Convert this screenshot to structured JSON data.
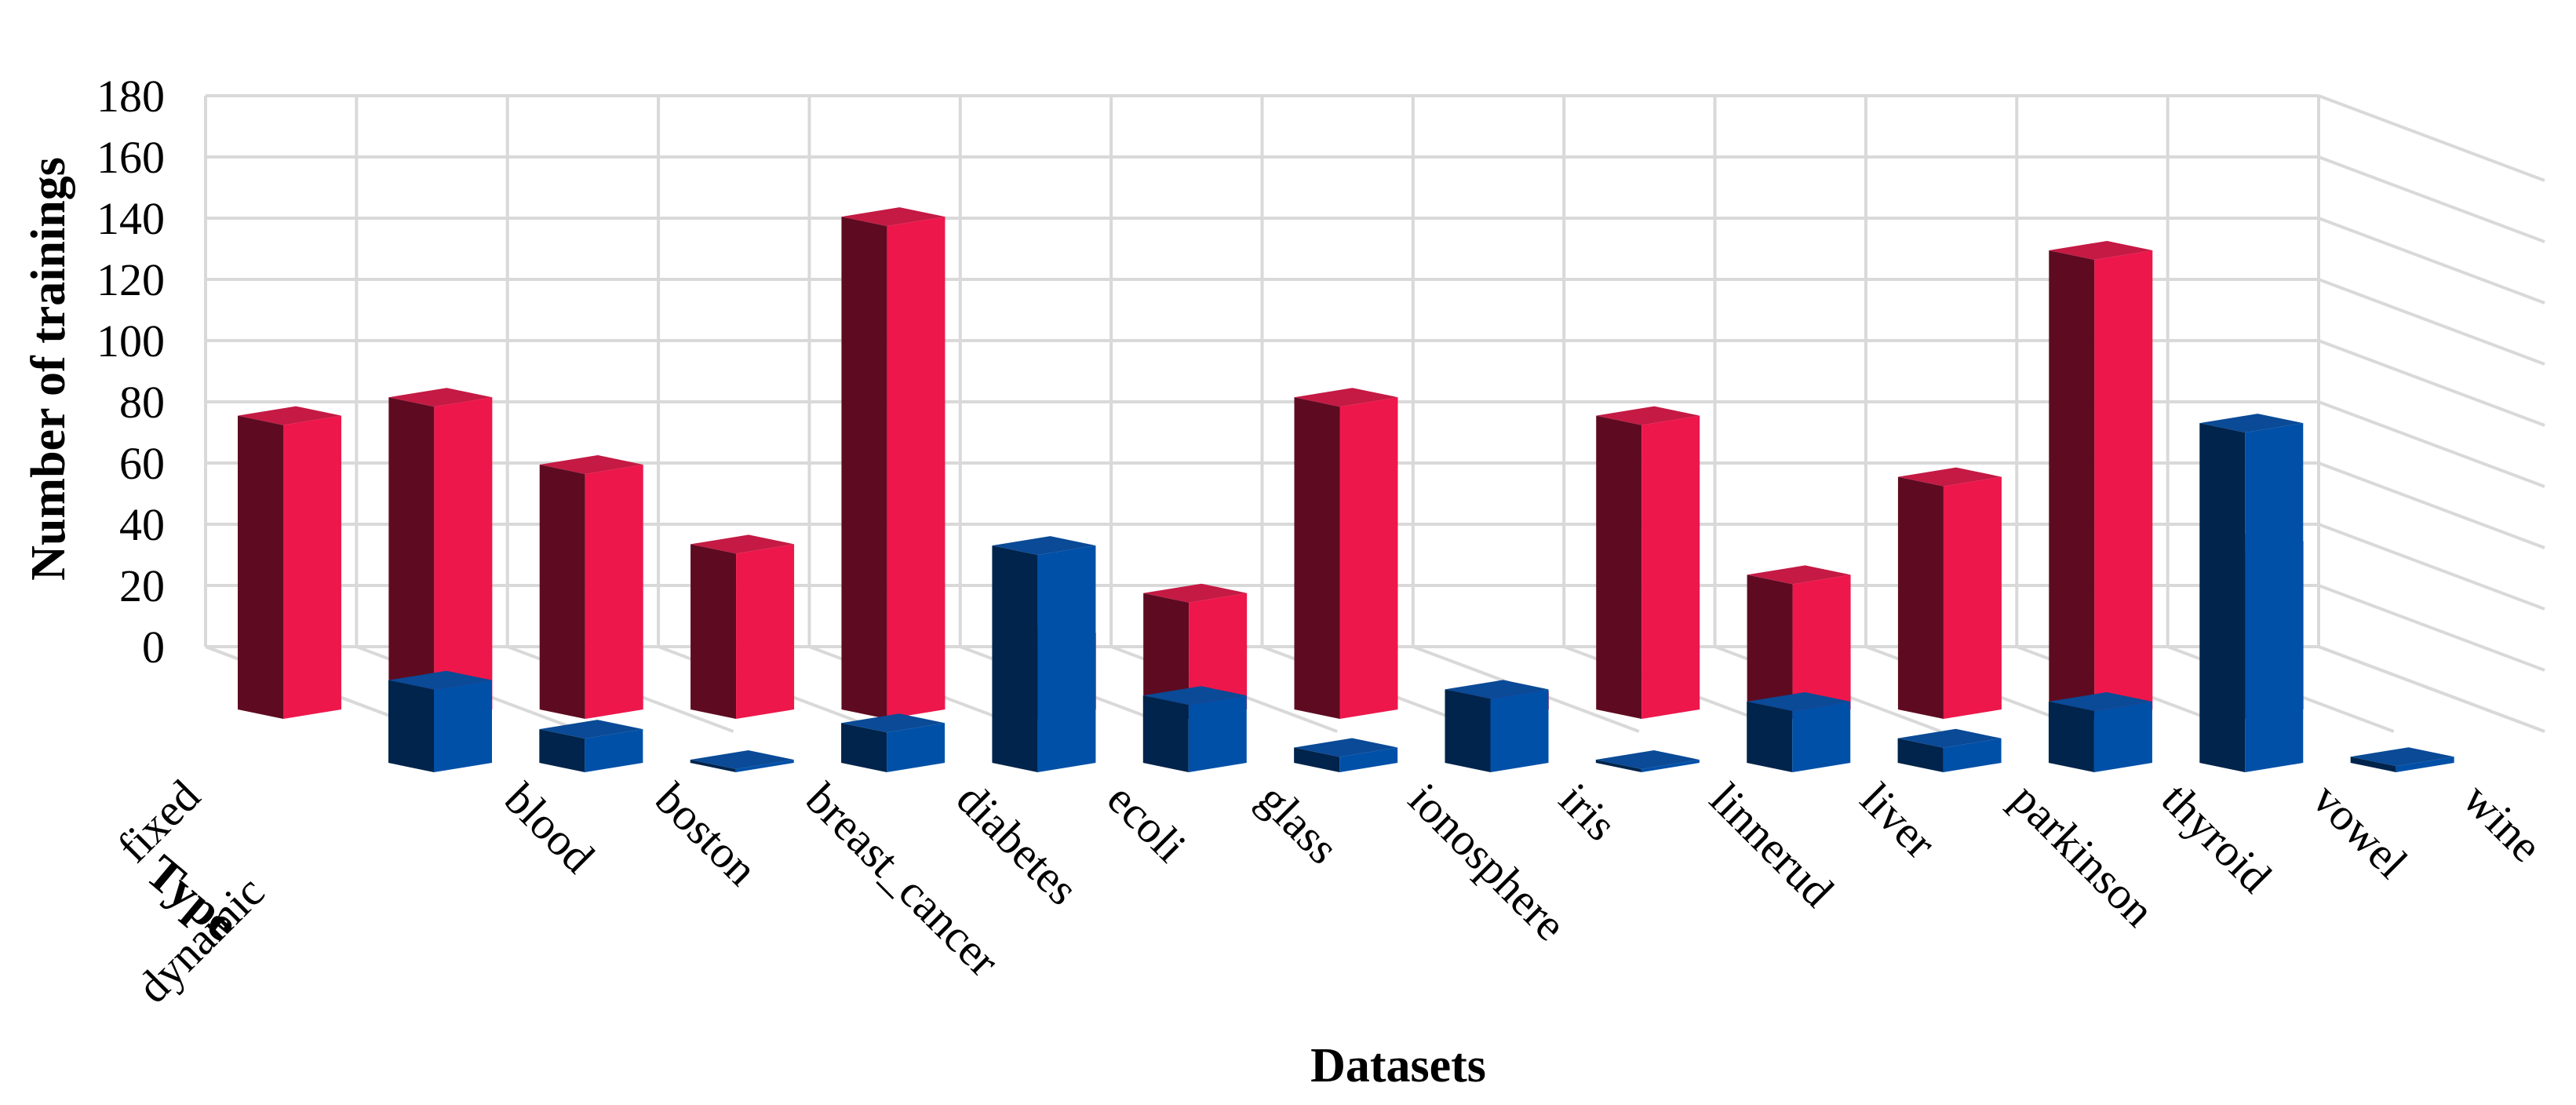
{
  "chart_data": {
    "type": "bar",
    "variant": "3d-column",
    "categories": [
      "blood",
      "boston",
      "breast_cancer",
      "diabetes",
      "ecoli",
      "glass",
      "ionosphere",
      "iris",
      "linnerud",
      "liver",
      "parkinson",
      "thyroid",
      "vowel",
      "wine"
    ],
    "series": [
      {
        "name": "fixed",
        "values": [
          96,
          102,
          80,
          54,
          161,
          25,
          38,
          102,
          6,
          96,
          44,
          76,
          150,
          55
        ]
      },
      {
        "name": "dynamic",
        "values": [
          27,
          11,
          1,
          13,
          71,
          22,
          5,
          24,
          1,
          20,
          8,
          20,
          111,
          2
        ]
      }
    ],
    "xlabel": "Datasets",
    "ylabel": "Number of trainings",
    "depth_label": "Type",
    "ylim": [
      0,
      180
    ],
    "yticks": [
      "0",
      "20",
      "40",
      "60",
      "80",
      "100",
      "120",
      "140",
      "160",
      "180"
    ],
    "grid": true,
    "legend": "none",
    "colors": {
      "fixed_front": "#ed174b",
      "fixed_top": "#c41a44",
      "fixed_side": "#5e0b21",
      "dynamic_front": "#0050a8",
      "dynamic_top": "#0a4a96",
      "dynamic_side": "#00244b",
      "grid": "#d9d9d9"
    }
  }
}
